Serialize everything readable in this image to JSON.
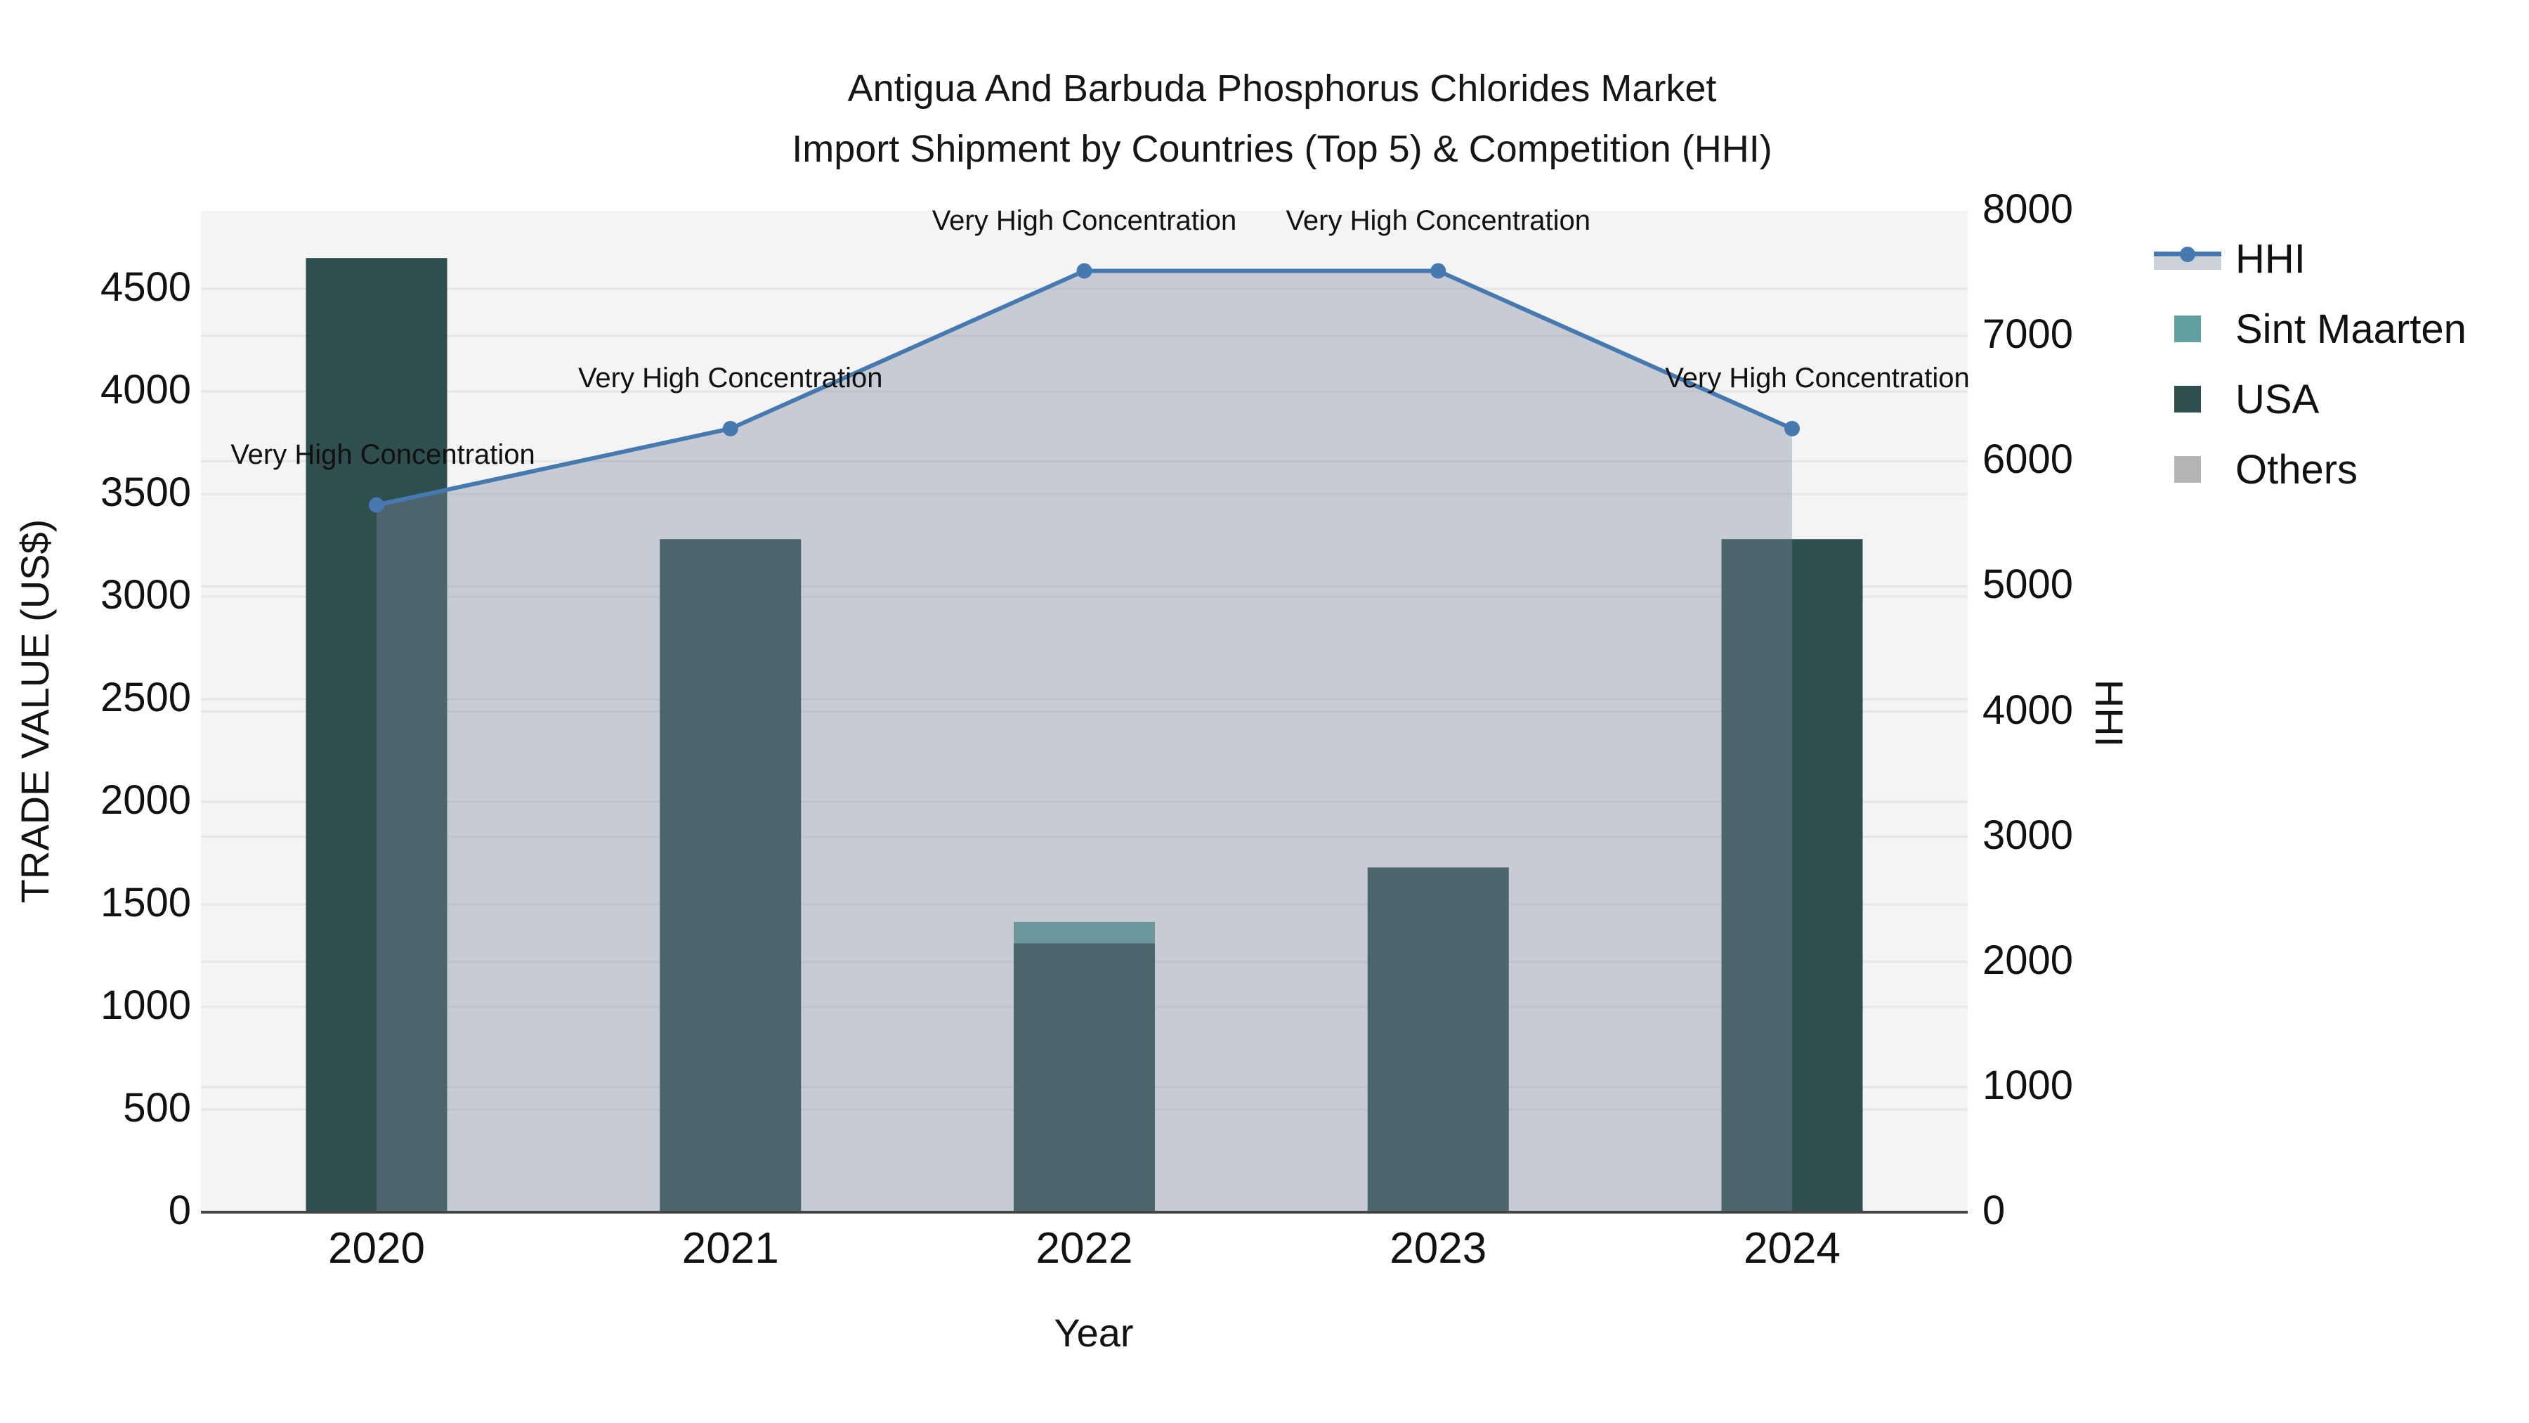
{
  "chart_data": {
    "type": "bar+line-dual-axis",
    "title_line1": "Antigua And Barbuda Phosphorus Chlorides Market",
    "title_line2": "Import Shipment by Countries (Top 5) & Competition (HHI)",
    "xlabel": "Year",
    "ylabel_left": "TRADE VALUE (US$)",
    "ylabel_right": "HHI",
    "categories": [
      "2020",
      "2021",
      "2022",
      "2023",
      "2024"
    ],
    "series": [
      {
        "name": "USA",
        "axis": "left",
        "color": "#2e4f4e",
        "values": [
          4650,
          3280,
          1310,
          1680,
          3280
        ]
      },
      {
        "name": "Sint Maarten",
        "axis": "left",
        "color": "#61a0a1",
        "values": [
          0,
          0,
          105,
          0,
          0
        ]
      },
      {
        "name": "Others",
        "axis": "left",
        "color": "#b5b5b5",
        "values": [
          0,
          0,
          0,
          0,
          0
        ]
      }
    ],
    "line_series": {
      "name": "HHI",
      "axis": "right",
      "color": "#4679af",
      "fill_color": "rgba(127,136,158,0.38)",
      "values": [
        5650,
        6260,
        7520,
        7520,
        6260
      ]
    },
    "annotations": [
      {
        "category": "2020",
        "text": "Very High Concentration",
        "x_offset": 9
      },
      {
        "category": "2021",
        "text": "Very High Concentration",
        "x_offset": 0
      },
      {
        "category": "2022",
        "text": "Very High Concentration",
        "x_offset": 0
      },
      {
        "category": "2023",
        "text": "Very High Concentration",
        "x_offset": 0
      },
      {
        "category": "2024",
        "text": "Very High Concentration",
        "x_offset": 36
      }
    ],
    "ylim_left": [
      0,
      4880
    ],
    "ylim_right": [
      0,
      8000
    ],
    "yticks_left": [
      0,
      500,
      1000,
      1500,
      2000,
      2500,
      3000,
      3500,
      4000,
      4500
    ],
    "yticks_right": [
      0,
      1000,
      2000,
      3000,
      4000,
      5000,
      6000,
      7000,
      8000
    ],
    "grid": true,
    "legend_position": "right-top-outside"
  },
  "legend": {
    "items": [
      {
        "label": "HHI",
        "type": "line",
        "color": "#4679af",
        "band_color": "#ccd1da"
      },
      {
        "label": "Sint Maarten",
        "type": "swatch",
        "color": "#61a0a1"
      },
      {
        "label": "USA",
        "type": "swatch",
        "color": "#2e4f4e"
      },
      {
        "label": "Others",
        "type": "swatch",
        "color": "#b5b5b5"
      }
    ]
  },
  "colors": {
    "page_bg": "#ffffff",
    "plot_bg": "#f4f4f4",
    "grid": "#e6e6e6",
    "axis_line": "#444444",
    "text": "#111111"
  }
}
